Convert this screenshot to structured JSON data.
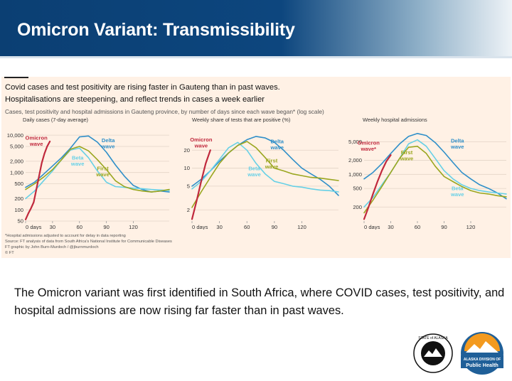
{
  "slide": {
    "title": "Omicron Variant: Transmissibility",
    "caption": "The Omicron variant was first identified in South Africa, where COVID cases, test positivity, and hospital admissions are now rising far faster than in past waves."
  },
  "figure": {
    "headline1": "Covid cases and test positivity are rising faster in Gauteng than in past waves.",
    "headline2": "Hospitalisations are steepening, and reflect trends in cases a week earlier",
    "subtitle": "Cases, test positivity and hospital admissions in Gauteng province, by number of days since each wave began* (log scale)",
    "footnote": "*Hospital admissions adjusted to account for delay in data reporting",
    "source": "Source: FT analysis of data from South Africa's National Institute for Communicable Diseases",
    "credit": "FT graphic by John Burn-Murdoch / @jburnmurdoch",
    "copyright": "© FT"
  },
  "colors": {
    "omicron": "#c0293d",
    "delta": "#2f8fc9",
    "beta": "#66d0e6",
    "first": "#9aa61f",
    "panel": "#fff1e5"
  },
  "logos": {
    "seal_text": "STATE of ALASKA",
    "dph_line1": "ALASKA DIVISION OF",
    "dph_line2": "Public Health"
  },
  "chart_data": [
    {
      "type": "line",
      "title": "Daily cases (7-day average)",
      "log_scale": true,
      "xlim": [
        0,
        160
      ],
      "ylim": [
        50,
        12000
      ],
      "x_ticks": [
        0,
        30,
        60,
        90,
        120
      ],
      "x_tick_labels": [
        "0 days",
        "30",
        "60",
        "90",
        "120"
      ],
      "y_ticks": [
        50,
        100,
        200,
        500,
        1000,
        2000,
        5000,
        10000
      ],
      "y_tick_labels": [
        "50",
        "100",
        "200",
        "500",
        "1,000",
        "2,000",
        "5,000",
        "10,000"
      ],
      "series": [
        {
          "name": "Omicron wave",
          "color": "omicron",
          "label_at": [
            12,
            7500
          ],
          "x": [
            0,
            3,
            6,
            9,
            12,
            15,
            18,
            21,
            24,
            27
          ],
          "y": [
            55,
            80,
            110,
            160,
            350,
            800,
            1800,
            3200,
            5000,
            6800
          ]
        },
        {
          "name": "Delta wave",
          "color": "delta",
          "label_at": [
            92,
            6500
          ],
          "x": [
            0,
            10,
            20,
            30,
            40,
            50,
            60,
            70,
            80,
            90,
            100,
            110,
            120,
            130,
            140,
            150,
            160
          ],
          "y": [
            400,
            550,
            900,
            1500,
            2500,
            4500,
            9000,
            9500,
            6500,
            3500,
            1600,
            800,
            450,
            350,
            300,
            320,
            300
          ]
        },
        {
          "name": "Beta wave",
          "color": "beta",
          "label_at": [
            58,
            2200
          ],
          "x": [
            0,
            10,
            20,
            30,
            40,
            50,
            60,
            70,
            80,
            90,
            100,
            110,
            120,
            130,
            140,
            150,
            160
          ],
          "y": [
            200,
            320,
            600,
            1100,
            2200,
            4000,
            4500,
            2500,
            1100,
            550,
            420,
            400,
            380,
            370,
            350,
            340,
            330
          ]
        },
        {
          "name": "First wave",
          "color": "first",
          "label_at": [
            86,
            1150
          ],
          "x": [
            0,
            10,
            20,
            30,
            40,
            50,
            60,
            70,
            80,
            90,
            100,
            110,
            120,
            130,
            140,
            150,
            160
          ],
          "y": [
            350,
            500,
            750,
            1200,
            2200,
            4200,
            5000,
            3800,
            2200,
            1200,
            600,
            420,
            350,
            320,
            300,
            320,
            350
          ]
        }
      ]
    },
    {
      "type": "line",
      "title": "Weekly share of tests that are positive (%)",
      "log_scale": true,
      "xlim": [
        0,
        160
      ],
      "ylim": [
        1.3,
        40
      ],
      "x_ticks": [
        0,
        30,
        60,
        90,
        120
      ],
      "x_tick_labels": [
        "0 days",
        "30",
        "60",
        "90",
        "120"
      ],
      "y_ticks": [
        2,
        5,
        10,
        20
      ],
      "y_tick_labels": [
        "2",
        "5",
        "10",
        "20"
      ],
      "series": [
        {
          "name": "Omicron wave",
          "color": "omicron",
          "label_at": [
            10,
            28
          ],
          "x": [
            0,
            5,
            10,
            15,
            20
          ],
          "y": [
            1.4,
            2.8,
            6,
            12,
            20
          ]
        },
        {
          "name": "Delta wave",
          "color": "delta",
          "label_at": [
            93,
            26
          ],
          "x": [
            0,
            10,
            20,
            30,
            40,
            50,
            60,
            70,
            80,
            90,
            100,
            110,
            120,
            130,
            140,
            150,
            160
          ],
          "y": [
            5,
            6.5,
            9,
            13,
            18,
            24,
            30,
            34,
            32,
            27,
            20,
            14,
            10,
            8,
            6.5,
            5,
            3.5
          ]
        },
        {
          "name": "Beta wave",
          "color": "beta",
          "label_at": [
            68,
            9.2
          ],
          "x": [
            0,
            10,
            20,
            30,
            40,
            50,
            60,
            70,
            80,
            90,
            100,
            110,
            120,
            130,
            140,
            150,
            160
          ],
          "y": [
            4.5,
            6,
            9,
            14,
            22,
            27,
            20,
            12,
            8,
            6,
            5.5,
            5,
            4.8,
            4.5,
            4.3,
            4.2,
            4
          ]
        },
        {
          "name": "First wave",
          "color": "first",
          "label_at": [
            87,
            12.5
          ],
          "x": [
            0,
            10,
            20,
            30,
            40,
            50,
            60,
            70,
            80,
            90,
            100,
            110,
            120,
            130,
            140,
            150,
            160
          ],
          "y": [
            2.2,
            4,
            7,
            12,
            18,
            24,
            28,
            22,
            15,
            10,
            9,
            8,
            7.5,
            7,
            6.8,
            6.5,
            6.2
          ]
        }
      ]
    },
    {
      "type": "line",
      "title": "Weekly hospital admissions",
      "log_scale": true,
      "xlim": [
        0,
        160
      ],
      "ylim": [
        100,
        8000
      ],
      "x_ticks": [
        0,
        30,
        60,
        90,
        120
      ],
      "x_tick_labels": [
        "0 days",
        "30",
        "60",
        "90",
        "120"
      ],
      "y_ticks": [
        200,
        500,
        1000,
        2000,
        5000
      ],
      "y_tick_labels": [
        "200",
        "500",
        "1,000",
        "2,000",
        "5,000"
      ],
      "series": [
        {
          "name": "Omicron wave*",
          "color": "omicron",
          "label_at": [
            5,
            4300
          ],
          "x": [
            0,
            5,
            10,
            15,
            20,
            25,
            30
          ],
          "y": [
            110,
            200,
            380,
            700,
            1200,
            1900,
            2600
          ]
        },
        {
          "name": "Delta wave",
          "color": "delta",
          "label_at": [
            105,
            4800
          ],
          "x": [
            0,
            10,
            20,
            30,
            40,
            50,
            60,
            70,
            80,
            90,
            100,
            110,
            120,
            130,
            140,
            150,
            160
          ],
          "y": [
            800,
            1100,
            1700,
            2800,
            4500,
            6500,
            7500,
            6800,
            4800,
            3000,
            1800,
            1100,
            800,
            600,
            500,
            400,
            300
          ]
        },
        {
          "name": "Beta wave",
          "color": "beta",
          "label_at": [
            105,
            460
          ],
          "x": [
            0,
            10,
            20,
            30,
            40,
            50,
            60,
            70,
            80,
            90,
            100,
            110,
            120,
            130,
            140,
            150,
            160
          ],
          "y": [
            200,
            320,
            600,
            1100,
            2200,
            4500,
            5500,
            4000,
            2200,
            1200,
            800,
            600,
            500,
            450,
            420,
            400,
            380
          ]
        },
        {
          "name": "First wave",
          "color": "first",
          "label_at": [
            48,
            2700
          ],
          "x": [
            0,
            10,
            20,
            30,
            40,
            50,
            60,
            70,
            80,
            90,
            100,
            110,
            120,
            130,
            140,
            150,
            160
          ],
          "y": [
            150,
            280,
            550,
            1100,
            2200,
            3800,
            4000,
            2800,
            1500,
            900,
            700,
            550,
            450,
            400,
            380,
            350,
            330
          ]
        }
      ]
    }
  ]
}
